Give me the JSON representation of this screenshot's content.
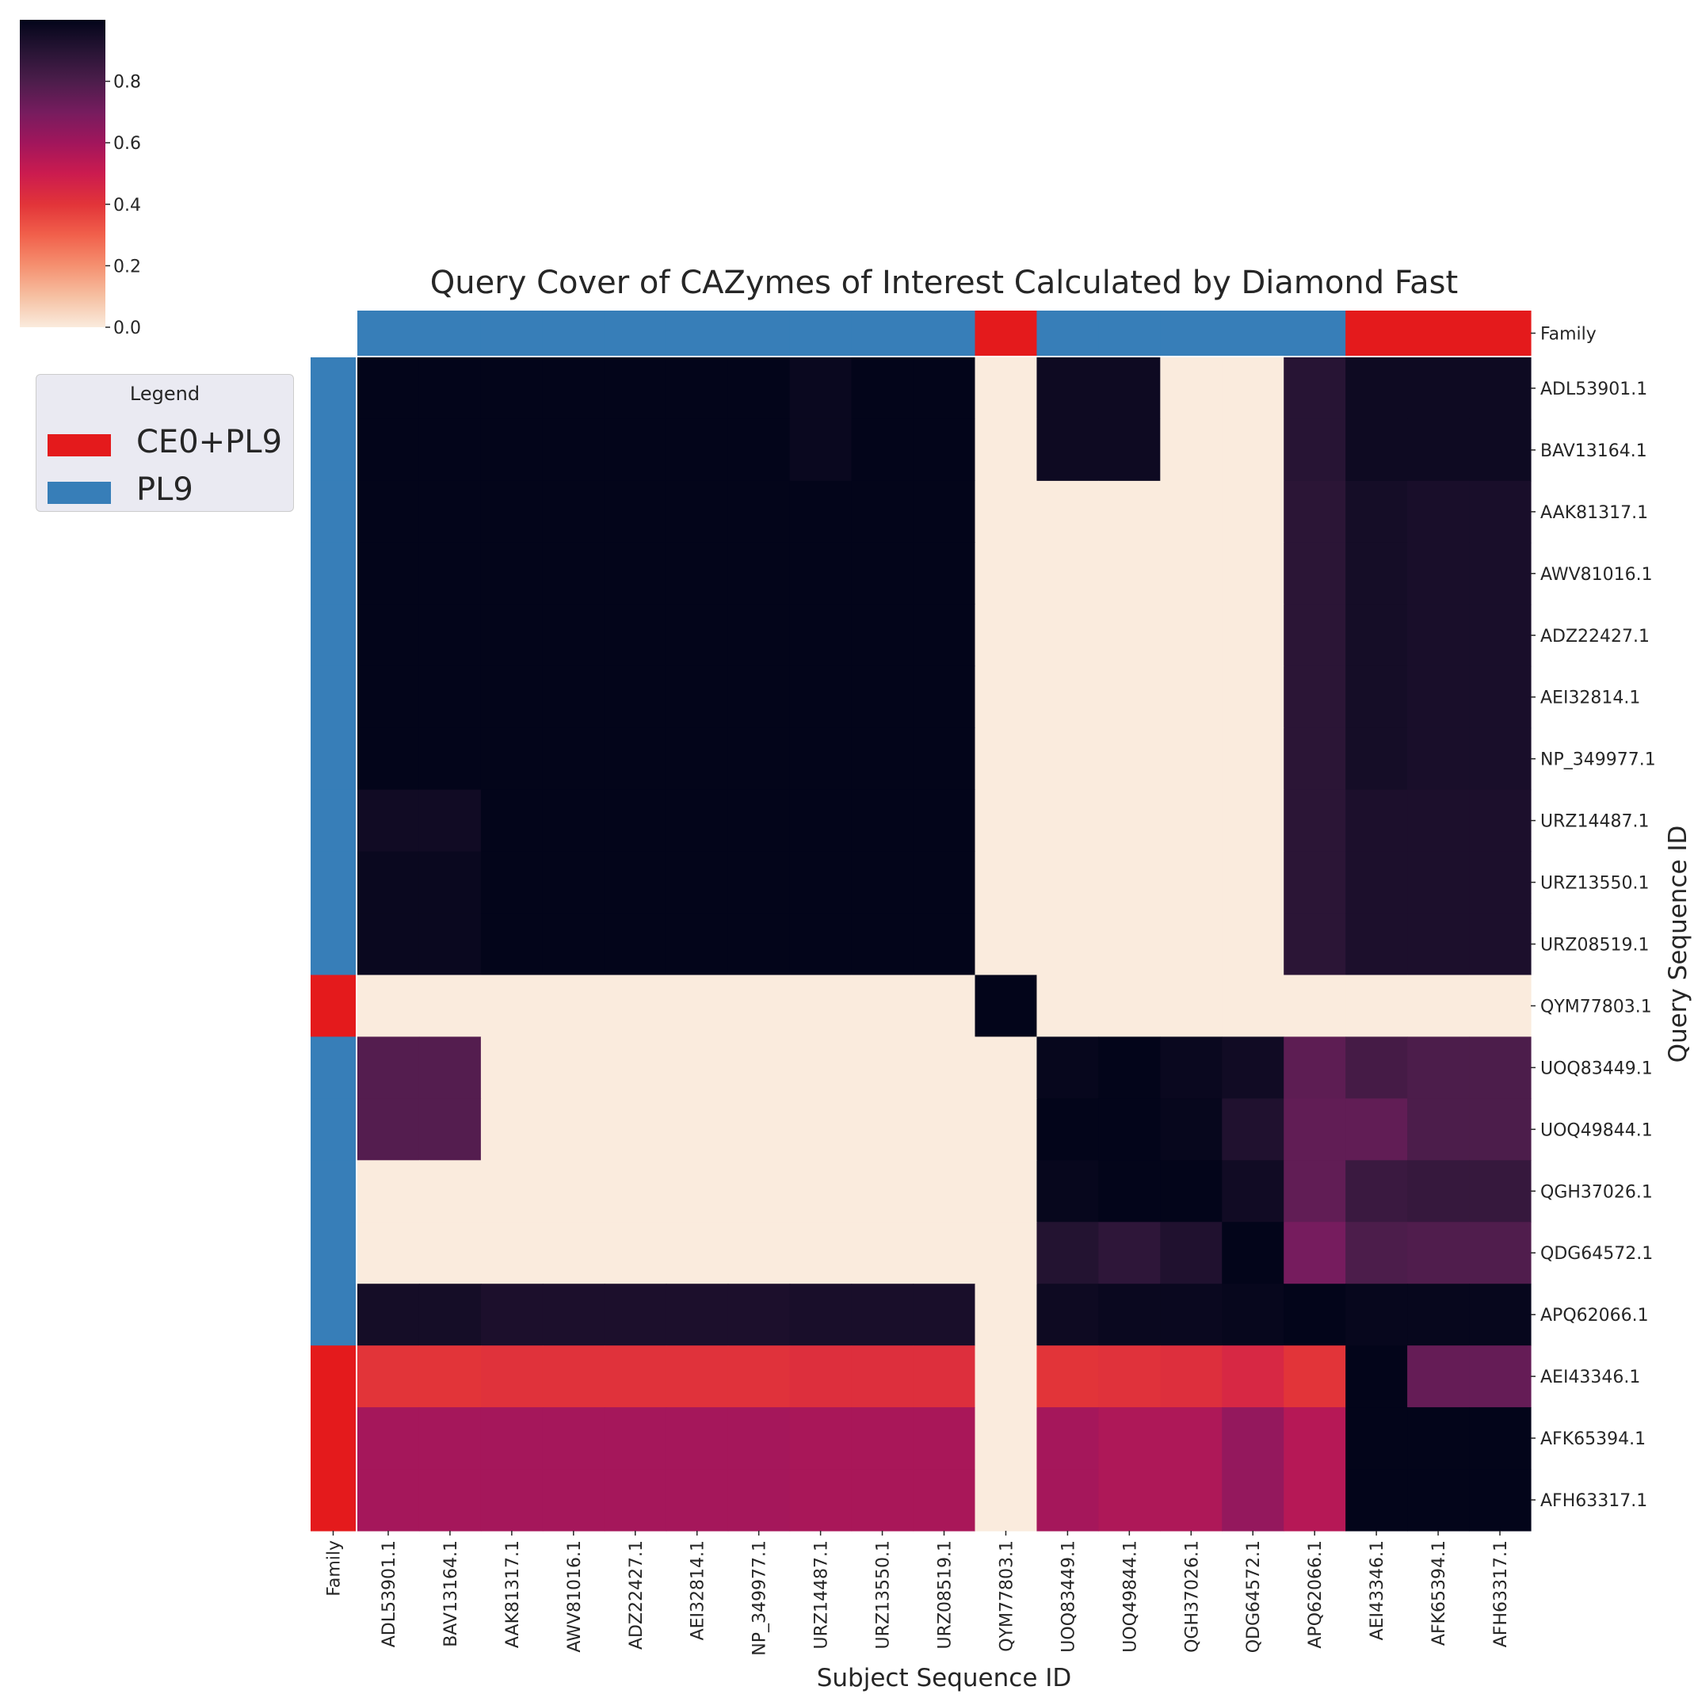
{
  "chart_data": {
    "type": "heatmap",
    "title": "Query Cover of CAZymes of Interest Calculated by Diamond Fast",
    "xlabel": "Subject Sequence ID",
    "ylabel": "Query Sequence ID",
    "annotation_label": "Family",
    "x_categories": [
      "ADL53901.1",
      "BAV13164.1",
      "AAK81317.1",
      "AWV81016.1",
      "ADZ22427.1",
      "AEI32814.1",
      "NP_349977.1",
      "URZ14487.1",
      "URZ13550.1",
      "URZ08519.1",
      "QYM77803.1",
      "UOQ83449.1",
      "UOQ49844.1",
      "QGH37026.1",
      "QDG64572.1",
      "APQ62066.1",
      "AEI43346.1",
      "AFK65394.1",
      "AFH63317.1"
    ],
    "y_categories": [
      "ADL53901.1",
      "BAV13164.1",
      "AAK81317.1",
      "AWV81016.1",
      "ADZ22427.1",
      "AEI32814.1",
      "NP_349977.1",
      "URZ14487.1",
      "URZ13550.1",
      "URZ08519.1",
      "QYM77803.1",
      "UOQ83449.1",
      "UOQ49844.1",
      "QGH37026.1",
      "QDG64572.1",
      "APQ62066.1",
      "AEI43346.1",
      "AFK65394.1",
      "AFH63317.1"
    ],
    "x_family": [
      "PL9",
      "PL9",
      "PL9",
      "PL9",
      "PL9",
      "PL9",
      "PL9",
      "PL9",
      "PL9",
      "PL9",
      "CE0+PL9",
      "PL9",
      "PL9",
      "PL9",
      "PL9",
      "PL9",
      "CE0+PL9",
      "CE0+PL9",
      "CE0+PL9"
    ],
    "y_family": [
      "PL9",
      "PL9",
      "PL9",
      "PL9",
      "PL9",
      "PL9",
      "PL9",
      "PL9",
      "PL9",
      "PL9",
      "CE0+PL9",
      "PL9",
      "PL9",
      "PL9",
      "PL9",
      "PL9",
      "CE0+PL9",
      "CE0+PL9",
      "CE0+PL9"
    ],
    "values": [
      [
        1.0,
        1.0,
        1.0,
        1.0,
        1.0,
        1.0,
        1.0,
        0.98,
        1.0,
        1.0,
        0.0,
        0.97,
        0.97,
        0.0,
        0.0,
        0.9,
        0.97,
        0.97,
        0.97
      ],
      [
        1.0,
        1.0,
        1.0,
        1.0,
        1.0,
        1.0,
        1.0,
        0.98,
        1.0,
        1.0,
        0.0,
        0.97,
        0.97,
        0.0,
        0.0,
        0.9,
        0.97,
        0.97,
        0.97
      ],
      [
        1.0,
        1.0,
        1.0,
        1.0,
        1.0,
        1.0,
        1.0,
        1.0,
        1.0,
        1.0,
        0.0,
        0.0,
        0.0,
        0.0,
        0.0,
        0.89,
        0.95,
        0.94,
        0.94
      ],
      [
        1.0,
        1.0,
        1.0,
        1.0,
        1.0,
        1.0,
        1.0,
        1.0,
        1.0,
        1.0,
        0.0,
        0.0,
        0.0,
        0.0,
        0.0,
        0.89,
        0.95,
        0.94,
        0.94
      ],
      [
        1.0,
        1.0,
        1.0,
        1.0,
        1.0,
        1.0,
        1.0,
        1.0,
        1.0,
        1.0,
        0.0,
        0.0,
        0.0,
        0.0,
        0.0,
        0.89,
        0.95,
        0.94,
        0.94
      ],
      [
        1.0,
        1.0,
        1.0,
        1.0,
        1.0,
        1.0,
        1.0,
        1.0,
        1.0,
        1.0,
        0.0,
        0.0,
        0.0,
        0.0,
        0.0,
        0.89,
        0.95,
        0.94,
        0.94
      ],
      [
        1.0,
        1.0,
        1.0,
        1.0,
        1.0,
        1.0,
        1.0,
        1.0,
        1.0,
        1.0,
        0.0,
        0.0,
        0.0,
        0.0,
        0.0,
        0.89,
        0.95,
        0.94,
        0.94
      ],
      [
        0.96,
        0.96,
        1.0,
        1.0,
        1.0,
        1.0,
        1.0,
        1.0,
        1.0,
        1.0,
        0.0,
        0.0,
        0.0,
        0.0,
        0.0,
        0.89,
        0.93,
        0.93,
        0.93
      ],
      [
        0.98,
        0.98,
        1.0,
        1.0,
        1.0,
        1.0,
        1.0,
        1.0,
        1.0,
        1.0,
        0.0,
        0.0,
        0.0,
        0.0,
        0.0,
        0.89,
        0.93,
        0.93,
        0.93
      ],
      [
        0.98,
        0.98,
        1.0,
        1.0,
        1.0,
        1.0,
        1.0,
        1.0,
        1.0,
        1.0,
        0.0,
        0.0,
        0.0,
        0.0,
        0.0,
        0.89,
        0.93,
        0.93,
        0.93
      ],
      [
        0.0,
        0.0,
        0.0,
        0.0,
        0.0,
        0.0,
        0.0,
        0.0,
        0.0,
        0.0,
        1.0,
        0.0,
        0.0,
        0.0,
        0.0,
        0.0,
        0.0,
        0.0,
        0.0
      ],
      [
        0.78,
        0.78,
        0.0,
        0.0,
        0.0,
        0.0,
        0.0,
        0.0,
        0.0,
        0.0,
        0.0,
        0.99,
        1.0,
        0.98,
        0.96,
        0.76,
        0.82,
        0.8,
        0.8
      ],
      [
        0.78,
        0.78,
        0.0,
        0.0,
        0.0,
        0.0,
        0.0,
        0.0,
        0.0,
        0.0,
        0.0,
        1.0,
        1.0,
        0.99,
        0.92,
        0.75,
        0.75,
        0.8,
        0.8
      ],
      [
        0.0,
        0.0,
        0.0,
        0.0,
        0.0,
        0.0,
        0.0,
        0.0,
        0.0,
        0.0,
        0.0,
        0.99,
        1.0,
        1.0,
        0.96,
        0.75,
        0.85,
        0.86,
        0.86
      ],
      [
        0.0,
        0.0,
        0.0,
        0.0,
        0.0,
        0.0,
        0.0,
        0.0,
        0.0,
        0.0,
        0.0,
        0.91,
        0.88,
        0.92,
        1.0,
        0.7,
        0.8,
        0.79,
        0.79
      ],
      [
        0.95,
        0.95,
        0.93,
        0.93,
        0.93,
        0.93,
        0.93,
        0.94,
        0.94,
        0.94,
        0.0,
        0.97,
        0.98,
        0.98,
        0.99,
        1.0,
        0.99,
        0.99,
        0.99
      ],
      [
        0.4,
        0.4,
        0.41,
        0.41,
        0.41,
        0.41,
        0.41,
        0.42,
        0.42,
        0.42,
        0.0,
        0.4,
        0.41,
        0.42,
        0.45,
        0.4,
        1.0,
        0.74,
        0.74
      ],
      [
        0.59,
        0.59,
        0.59,
        0.59,
        0.59,
        0.59,
        0.59,
        0.58,
        0.58,
        0.58,
        0.0,
        0.59,
        0.57,
        0.57,
        0.63,
        0.55,
        1.0,
        1.0,
        1.0
      ],
      [
        0.59,
        0.59,
        0.59,
        0.59,
        0.59,
        0.59,
        0.59,
        0.58,
        0.58,
        0.58,
        0.0,
        0.59,
        0.57,
        0.57,
        0.63,
        0.55,
        1.0,
        1.0,
        1.0
      ]
    ],
    "vmin": 0.0,
    "vmax": 1.0,
    "colormap": "rocket_r",
    "colorbar_ticks": [
      "0.0",
      "0.2",
      "0.4",
      "0.6",
      "0.8"
    ],
    "legend": {
      "title": "Legend",
      "placement": "upper-left",
      "entries": [
        {
          "label": "CE0+PL9",
          "color": "#e41a1c"
        },
        {
          "label": "PL9",
          "color": "#377eb8"
        }
      ]
    },
    "family_colors": {
      "CE0+PL9": "#e41a1c",
      "PL9": "#377eb8"
    }
  }
}
